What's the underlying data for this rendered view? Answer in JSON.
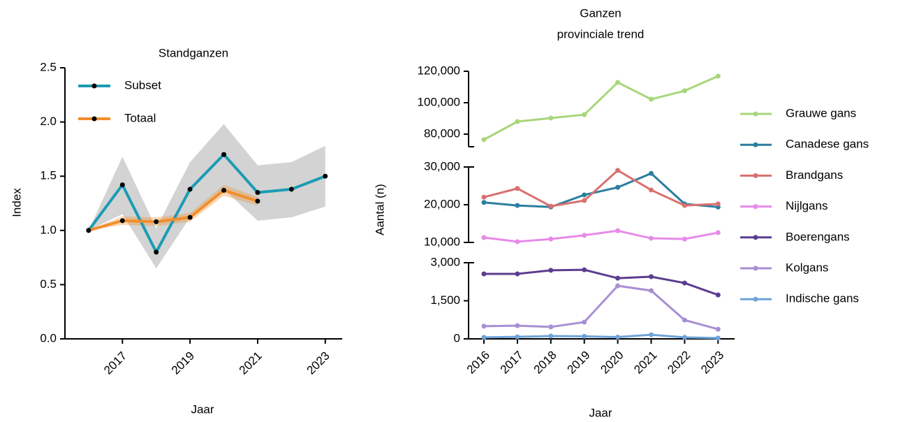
{
  "chart_data": [
    {
      "type": "line",
      "title": "Standganzen",
      "xlabel": "Jaar",
      "ylabel": "Index",
      "x": [
        2016,
        2017,
        2018,
        2019,
        2020,
        2021,
        2022,
        2023
      ],
      "xlim": [
        2015.3,
        2023.5
      ],
      "xticks": [
        2017,
        2019,
        2021,
        2023
      ],
      "ylim": [
        0,
        2.5
      ],
      "yticks": [
        {
          "value": 0,
          "label": "0.0"
        },
        0.5,
        {
          "value": 1,
          "label": "1.0"
        },
        1.5,
        {
          "value": 2,
          "label": "2.0"
        },
        2.5
      ],
      "legend": "upper left",
      "band_color": "#d3d3d3",
      "series": [
        {
          "name": "Subset",
          "color": "#1b9bb5",
          "values": [
            1.0,
            1.42,
            0.8,
            1.38,
            1.7,
            1.35,
            1.38,
            1.5
          ],
          "upper": [
            1.0,
            1.68,
            1.02,
            1.63,
            1.98,
            1.6,
            1.63,
            1.78
          ],
          "lower": [
            1.0,
            1.15,
            0.65,
            1.12,
            1.38,
            1.09,
            1.12,
            1.22
          ]
        },
        {
          "name": "Totaal",
          "color": "#f28e2b",
          "values": [
            1.0,
            1.09,
            1.08,
            1.12,
            1.37,
            1.27,
            null,
            null
          ],
          "upper": [
            1.0,
            1.13,
            1.12,
            1.16,
            1.42,
            1.31,
            null,
            null
          ],
          "lower": [
            1.0,
            1.05,
            1.04,
            1.08,
            1.32,
            1.23,
            null,
            null
          ]
        }
      ]
    },
    {
      "type": "line",
      "title": "Ganzen",
      "subtitle": "provinciale trend",
      "xlabel": "Jaar",
      "ylabel": "Aantal (n)",
      "categories": [
        "2016",
        "2017",
        "2018",
        "2019",
        "2020",
        "2021",
        "2022",
        "2023"
      ],
      "legend": "right",
      "panels": [
        {
          "ylim": [
            72000,
            120000
          ],
          "yticks": [
            {
              "value": 80000,
              "label": "80,000"
            },
            {
              "value": 100000,
              "label": "100,000"
            },
            {
              "value": 120000,
              "label": "120,000"
            }
          ]
        },
        {
          "ylim": [
            10000,
            30000
          ],
          "yticks": [
            {
              "value": 10000,
              "label": "10,000"
            },
            {
              "value": 20000,
              "label": "20,000"
            },
            {
              "value": 30000,
              "label": "30,000"
            }
          ]
        },
        {
          "ylim": [
            0,
            3000
          ],
          "yticks": [
            0,
            {
              "value": 1500,
              "label": "1,500"
            },
            {
              "value": 3000,
              "label": "3,000"
            }
          ]
        }
      ],
      "series": [
        {
          "name": "Grauwe gans",
          "color": "#a8d67a",
          "panel": 0,
          "values": [
            76500,
            88000,
            90200,
            92400,
            112900,
            102200,
            107600,
            116900
          ]
        },
        {
          "name": "Canadese gans",
          "color": "#2a7f9e",
          "panel": 1,
          "values": [
            20600,
            19800,
            19400,
            22600,
            24600,
            28300,
            20200,
            19400
          ]
        },
        {
          "name": "Brandgans",
          "color": "#d9706f",
          "panel": 1,
          "values": [
            22000,
            24300,
            19600,
            21100,
            29100,
            23900,
            19800,
            20200
          ]
        },
        {
          "name": "Nijlgans",
          "color": "#e88ae8",
          "panel": 1,
          "values": [
            11300,
            10200,
            10900,
            11900,
            13100,
            11100,
            10900,
            12600
          ]
        },
        {
          "name": "Boerengans",
          "color": "#5c3d8f",
          "panel": 2,
          "values": [
            2560,
            2560,
            2700,
            2720,
            2390,
            2450,
            2200,
            1730
          ]
        },
        {
          "name": "Kolgans",
          "color": "#a88fd4",
          "panel": 2,
          "values": [
            500,
            520,
            470,
            660,
            2090,
            1900,
            740,
            380
          ]
        },
        {
          "name": "Indische gans",
          "color": "#6fa3d8",
          "panel": 2,
          "values": [
            60,
            80,
            110,
            100,
            70,
            160,
            60,
            30
          ]
        }
      ]
    }
  ]
}
